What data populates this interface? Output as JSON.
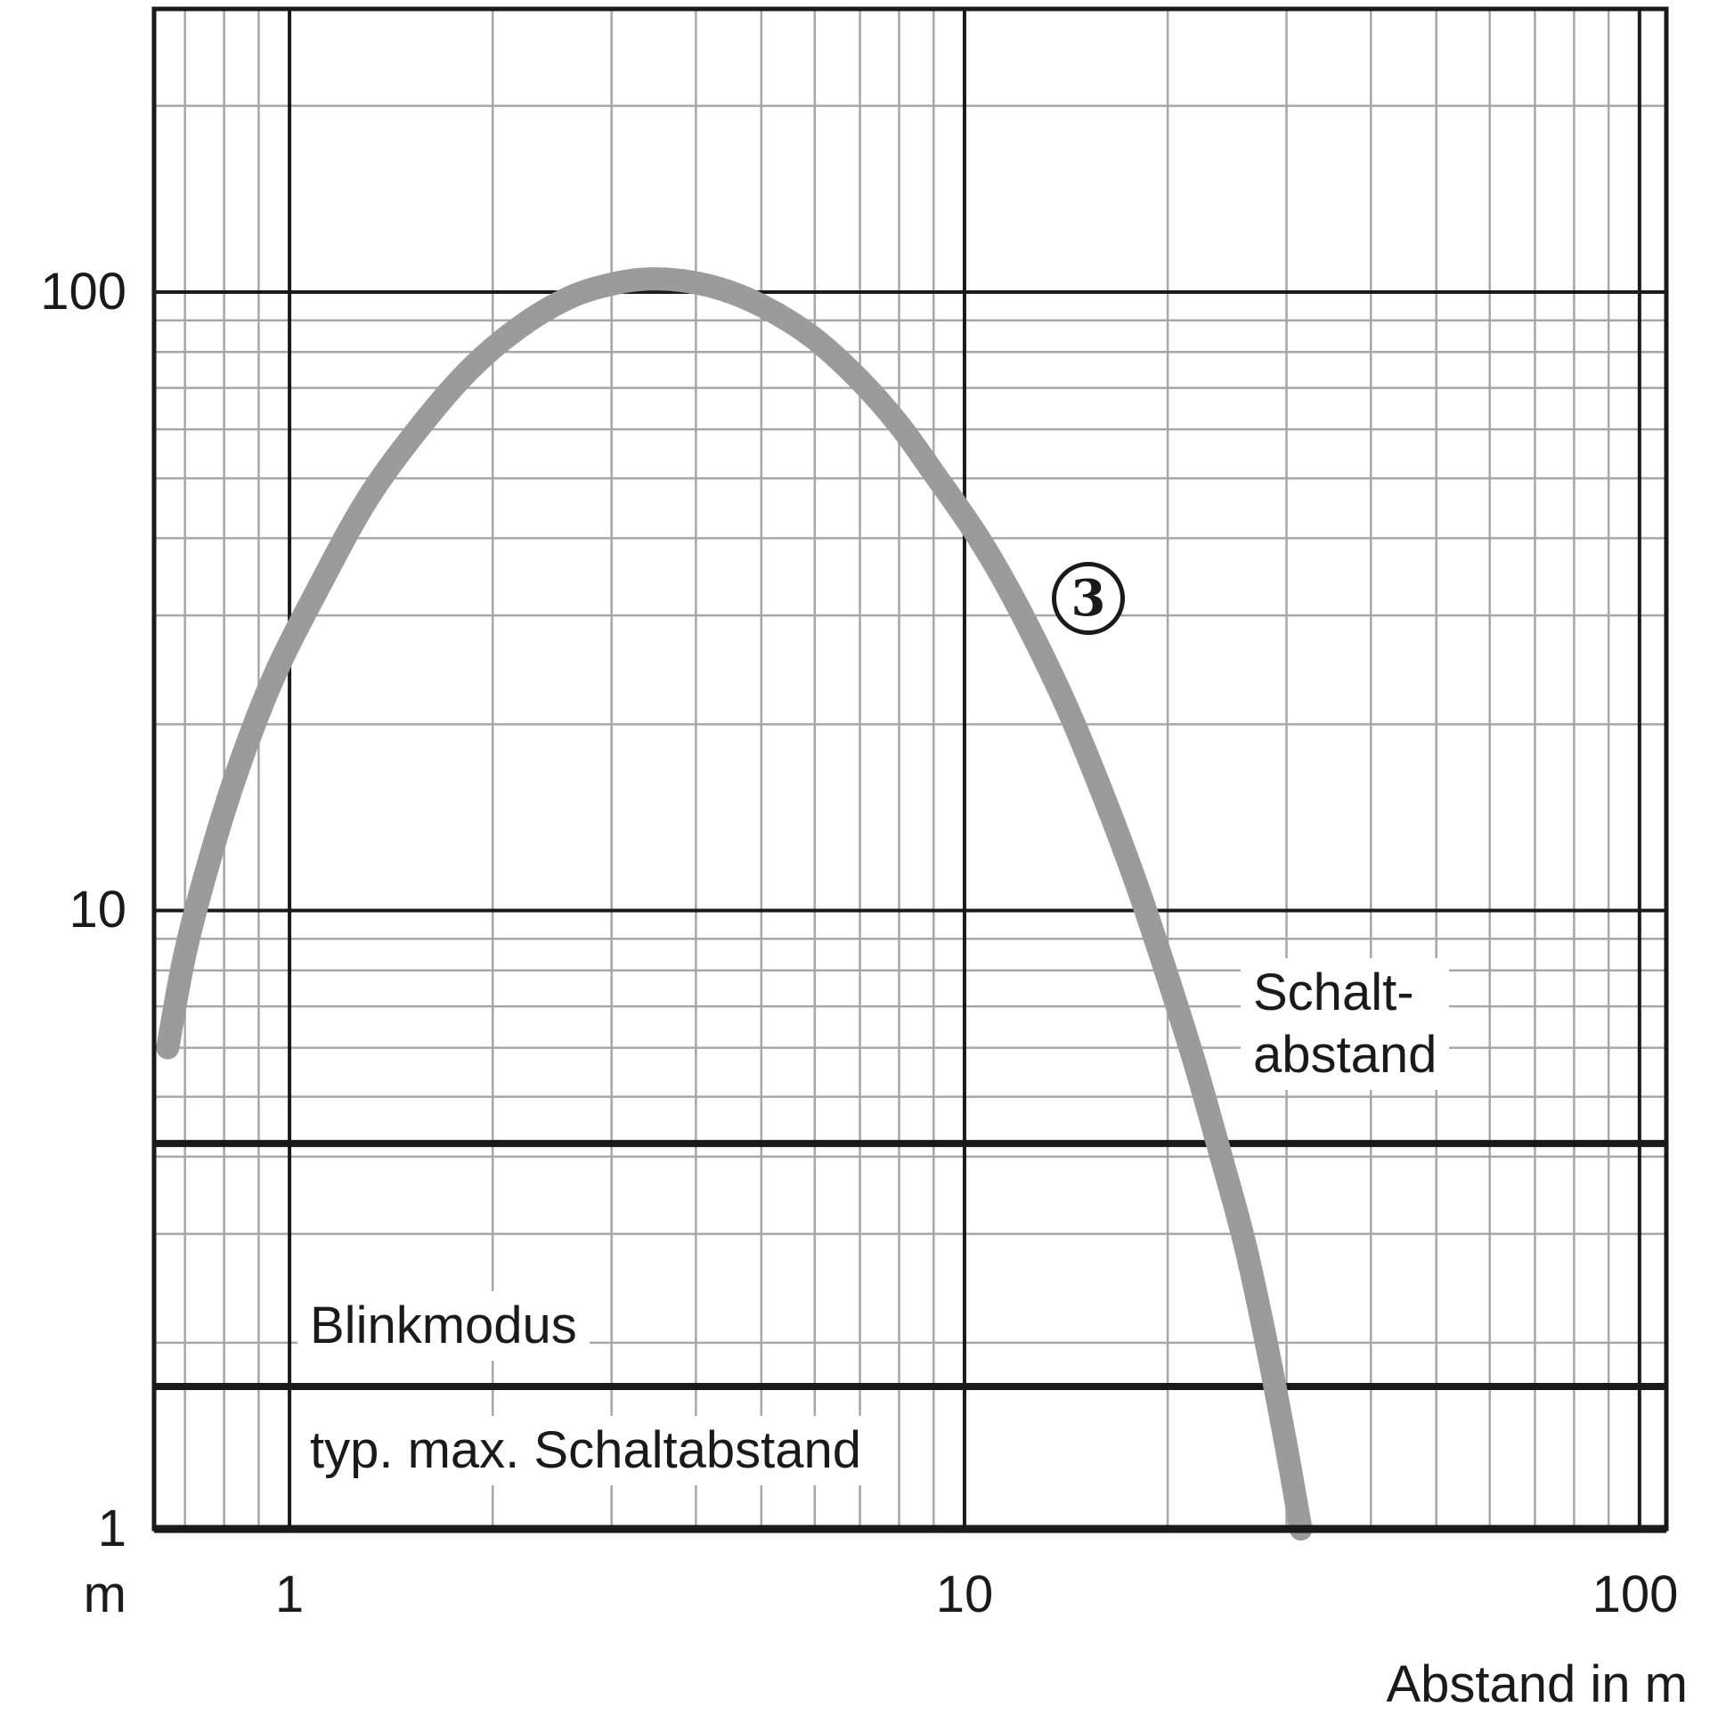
{
  "figure": {
    "background": "#ffffff",
    "colors": {
      "curve": "#9b9b9b",
      "grid_minor": "#a6a6a6",
      "grid_major": "#1a1a1a",
      "text": "#1a1a1a"
    }
  },
  "axis": {
    "x_title": "Abstand in m",
    "y_unit": "m",
    "x_ticks": [
      "1",
      "10",
      "100"
    ],
    "y_ticks": [
      "100",
      "10",
      "1"
    ]
  },
  "annotations": {
    "curve_marker": "3",
    "schaltabstand_line1": "Schalt-",
    "schaltabstand_line2": "abstand",
    "blinkmodus": "Blinkmodus",
    "typ_max_schaltabstand": "typ. max. Schaltabstand"
  },
  "chart_data": {
    "type": "line",
    "title": "",
    "xlabel": "Abstand in m",
    "ylabel": "m",
    "x_scale": "log",
    "y_scale": "log",
    "xlim": [
      0.63,
      109.6
    ],
    "ylim": [
      1,
      287
    ],
    "x_ticks": [
      1,
      10,
      100
    ],
    "y_ticks": [
      1,
      10,
      100
    ],
    "grid": "logarithmic minor and major gridlines",
    "legend_position": "none",
    "series": [
      {
        "name": "sensor-characteristic-curve",
        "marker_label": "3",
        "points": [
          [
            0.66,
            6.0
          ],
          [
            0.7,
            8.5
          ],
          [
            0.76,
            12
          ],
          [
            0.84,
            17
          ],
          [
            0.95,
            24
          ],
          [
            1.1,
            33
          ],
          [
            1.3,
            46
          ],
          [
            1.55,
            60
          ],
          [
            1.85,
            75
          ],
          [
            2.2,
            88
          ],
          [
            2.6,
            98
          ],
          [
            3.0,
            103
          ],
          [
            3.4,
            105
          ],
          [
            3.9,
            104
          ],
          [
            4.5,
            100
          ],
          [
            5.2,
            93
          ],
          [
            6.0,
            84
          ],
          [
            7.0,
            72
          ],
          [
            8.0,
            61
          ],
          [
            9.0,
            51
          ],
          [
            10.5,
            40
          ],
          [
            12,
            31
          ],
          [
            14,
            22
          ],
          [
            16,
            15.5
          ],
          [
            18,
            11
          ],
          [
            20,
            7.8
          ],
          [
            22,
            5.6
          ],
          [
            24,
            4.0
          ],
          [
            26,
            2.9
          ],
          [
            28,
            2.0
          ],
          [
            30,
            1.35
          ],
          [
            31.5,
            1.0
          ]
        ]
      }
    ],
    "reference_lines": [
      {
        "y": 4.2,
        "label": "Schaltabstand"
      },
      {
        "y": 1.7,
        "label": "Blinkmodus"
      }
    ],
    "annotations": [
      {
        "text": "3",
        "x": 15.3,
        "y": 32,
        "style": "circled"
      },
      {
        "text": "Schalt- abstand",
        "x": 27,
        "y": 6.5
      },
      {
        "text": "Blinkmodus",
        "x": 1.15,
        "y": 2.1
      },
      {
        "text": "typ. max. Schaltabstand",
        "x": 1.15,
        "y": 1.33
      }
    ]
  }
}
